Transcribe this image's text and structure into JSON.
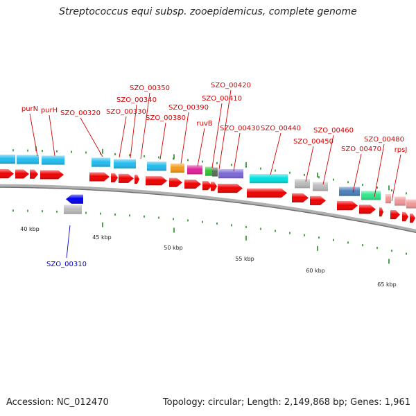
{
  "header": {
    "title": "Streptococcus equi subsp. zooepidemicus, complete genome"
  },
  "footer": {
    "accession": "Accession: NC_012470",
    "topology": "Topology: circular; Length: 2,149,868 bp; Genes: 1,961"
  },
  "gene_labels": [
    {
      "text": "purN",
      "color": "#d40000"
    },
    {
      "text": "purH",
      "color": "#d40000"
    },
    {
      "text": "SZO_00320",
      "color": "#d40000"
    },
    {
      "text": "SZO_00330",
      "color": "#d40000"
    },
    {
      "text": "SZO_00340",
      "color": "#d40000"
    },
    {
      "text": "SZO_00350",
      "color": "#d40000"
    },
    {
      "text": "SZO_00380",
      "color": "#d40000"
    },
    {
      "text": "SZO_00390",
      "color": "#d40000"
    },
    {
      "text": "ruvB",
      "color": "#d40000"
    },
    {
      "text": "SZO_00410",
      "color": "#d40000"
    },
    {
      "text": "SZO_00420",
      "color": "#d40000"
    },
    {
      "text": "SZO_00430",
      "color": "#d40000"
    },
    {
      "text": "SZO_00440",
      "color": "#d40000"
    },
    {
      "text": "SZO_00450",
      "color": "#d40000"
    },
    {
      "text": "SZO_00460",
      "color": "#d40000"
    },
    {
      "text": "SZO_00470",
      "color": "#d40000"
    },
    {
      "text": "SZO_00480",
      "color": "#d40000"
    },
    {
      "text": "rpsJ",
      "color": "#d40000"
    },
    {
      "text": "SZO_00310",
      "color": "#0000cc"
    }
  ],
  "scale_labels": [
    "40 kbp",
    "45 kbp",
    "50 kbp",
    "55 kbp",
    "60 kbp",
    "65 kbp"
  ],
  "colors": {
    "cds_forward": "#ee0000",
    "cds_reverse": "#0000ee",
    "backbone": "#888888",
    "tick": "#228b22",
    "feature_cyan": "#22bbee",
    "feature_orange": "#f29a1a",
    "feature_magenta": "#e0229a",
    "feature_green": "#33c233",
    "feature_purple": "#7b68d6",
    "feature_aqua": "#00e0e0",
    "feature_gray": "#bbbbbb",
    "feature_steel": "#4a7fb8",
    "feature_springgreen": "#2ee68a",
    "feature_pink": "#f09898"
  }
}
